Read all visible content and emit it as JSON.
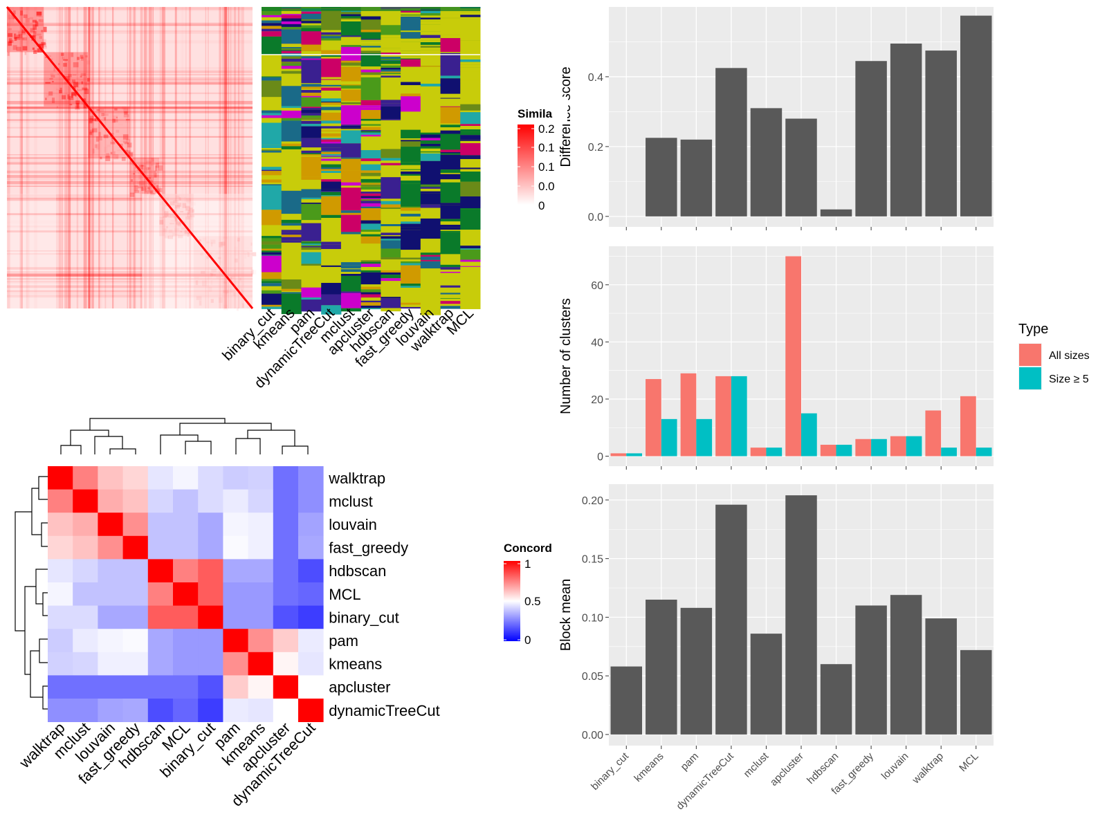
{
  "methods": [
    "binary_cut",
    "kmeans",
    "pam",
    "dynamicTreeCut",
    "mclust",
    "apcluster",
    "hdbscan",
    "fast_greedy",
    "louvain",
    "walktrap",
    "MCL"
  ],
  "similarity_panel": {
    "legend_title": "Simila",
    "legend_ticks": [
      "0.2",
      "0.1",
      "0.1",
      "0.0",
      "0"
    ],
    "palette": [
      "#ffffff",
      "#ff0000"
    ],
    "method_colors": [
      "#c8cc0a",
      "#0a7a2a",
      "#cc00cc",
      "#101070",
      "#1a6a88",
      "#cc0066",
      "#4a9a1a",
      "#6a8a18",
      "#3a2090",
      "#d09a00",
      "#20a8a8"
    ]
  },
  "concordance_panel": {
    "legend_title": "Concord",
    "legend_ticks": [
      "1",
      "0.5",
      "0"
    ],
    "palette": [
      "#0000ff",
      "#ffffff",
      "#ff0000"
    ],
    "order": [
      "walktrap",
      "mclust",
      "louvain",
      "fast_greedy",
      "hdbscan",
      "MCL",
      "binary_cut",
      "pam",
      "kmeans",
      "apcluster",
      "dynamicTreeCut"
    ],
    "matrix": [
      [
        1.0,
        0.75,
        0.62,
        0.58,
        0.45,
        0.48,
        0.43,
        0.4,
        0.41,
        0.22,
        0.28
      ],
      [
        0.75,
        1.0,
        0.66,
        0.62,
        0.42,
        0.38,
        0.43,
        0.46,
        0.42,
        0.22,
        0.28
      ],
      [
        0.62,
        0.66,
        1.0,
        0.72,
        0.38,
        0.38,
        0.33,
        0.48,
        0.47,
        0.22,
        0.32
      ],
      [
        0.58,
        0.62,
        0.72,
        1.0,
        0.38,
        0.38,
        0.33,
        0.49,
        0.47,
        0.22,
        0.33
      ],
      [
        0.45,
        0.42,
        0.38,
        0.38,
        1.0,
        0.75,
        0.82,
        0.33,
        0.33,
        0.22,
        0.15
      ],
      [
        0.48,
        0.38,
        0.38,
        0.38,
        0.75,
        1.0,
        0.82,
        0.3,
        0.3,
        0.22,
        0.2
      ],
      [
        0.43,
        0.43,
        0.33,
        0.33,
        0.82,
        0.82,
        1.0,
        0.3,
        0.3,
        0.16,
        0.12
      ],
      [
        0.4,
        0.46,
        0.48,
        0.49,
        0.33,
        0.3,
        0.3,
        1.0,
        0.72,
        0.6,
        0.46
      ],
      [
        0.41,
        0.42,
        0.47,
        0.47,
        0.33,
        0.3,
        0.3,
        0.72,
        1.0,
        0.52,
        0.45
      ],
      [
        0.22,
        0.22,
        0.22,
        0.22,
        0.22,
        0.22,
        0.16,
        0.6,
        0.52,
        1.0,
        0.5
      ],
      [
        0.28,
        0.28,
        0.32,
        0.33,
        0.15,
        0.2,
        0.12,
        0.46,
        0.45,
        0.5,
        1.0
      ]
    ]
  },
  "chart_data": [
    {
      "type": "bar",
      "categories": [
        "binary_cut",
        "kmeans",
        "pam",
        "dynamicTreeCut",
        "mclust",
        "apcluster",
        "hdbscan",
        "fast_greedy",
        "louvain",
        "walktrap",
        "MCL"
      ],
      "values": [
        0.0,
        0.225,
        0.22,
        0.425,
        0.31,
        0.28,
        0.02,
        0.445,
        0.495,
        0.475,
        0.575
      ],
      "ylabel": "Difference score",
      "ylim": [
        -0.03,
        0.6
      ],
      "yticks": [
        "0.0",
        "0.2",
        "0.4"
      ],
      "color": "#595959"
    },
    {
      "type": "bar",
      "categories": [
        "binary_cut",
        "kmeans",
        "pam",
        "dynamicTreeCut",
        "mclust",
        "apcluster",
        "hdbscan",
        "fast_greedy",
        "louvain",
        "walktrap",
        "MCL"
      ],
      "series": [
        {
          "name": "All sizes",
          "values": [
            1,
            27,
            29,
            28,
            3,
            70,
            4,
            6,
            7,
            16,
            21
          ],
          "color": "#f8766d"
        },
        {
          "name": "Size ≥ 5",
          "values": [
            1,
            13,
            13,
            28,
            3,
            15,
            4,
            6,
            7,
            3,
            3
          ],
          "color": "#00bfc4"
        }
      ],
      "ylabel": "Number of clusters",
      "ylim": [
        -3.5,
        73.5
      ],
      "yticks": [
        "0",
        "20",
        "40",
        "60"
      ],
      "legend_title": "Type",
      "legend_position": "right"
    },
    {
      "type": "bar",
      "categories": [
        "binary_cut",
        "kmeans",
        "pam",
        "dynamicTreeCut",
        "mclust",
        "apcluster",
        "hdbscan",
        "fast_greedy",
        "louvain",
        "walktrap",
        "MCL"
      ],
      "values": [
        0.058,
        0.115,
        0.108,
        0.196,
        0.086,
        0.204,
        0.06,
        0.11,
        0.119,
        0.099,
        0.072
      ],
      "ylabel": "Block mean",
      "ylim": [
        -0.0095,
        0.2135
      ],
      "yticks": [
        "0.00",
        "0.05",
        "0.10",
        "0.15",
        "0.20"
      ],
      "color": "#595959"
    }
  ]
}
